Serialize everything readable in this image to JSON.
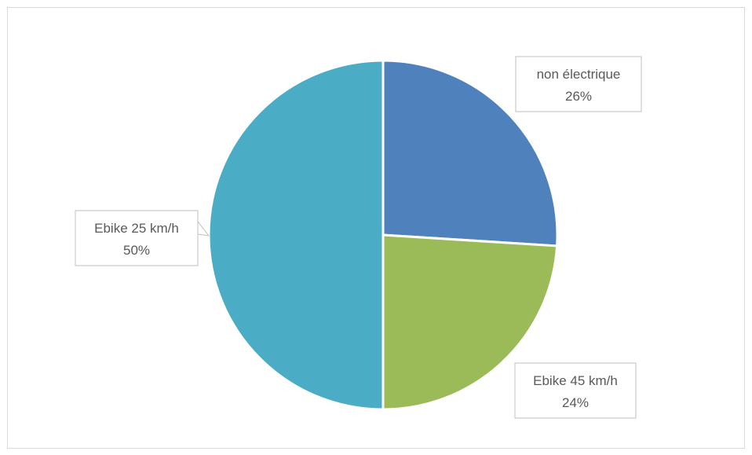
{
  "chart_data": {
    "type": "pie",
    "slices": [
      {
        "name": "non électrique",
        "value": 26,
        "label": "26%",
        "color": "#4f81bd"
      },
      {
        "name": "Ebike 45 km/h",
        "value": 24,
        "label": "24%",
        "color": "#9bbb59"
      },
      {
        "name": "Ebike 25 km/h",
        "value": 50,
        "label": "50%",
        "color": "#4bacc6"
      }
    ],
    "start_angle": "12 o'clock",
    "direction": "clockwise",
    "legend": "none",
    "data_labels": "callout boxes with category name and percent"
  }
}
